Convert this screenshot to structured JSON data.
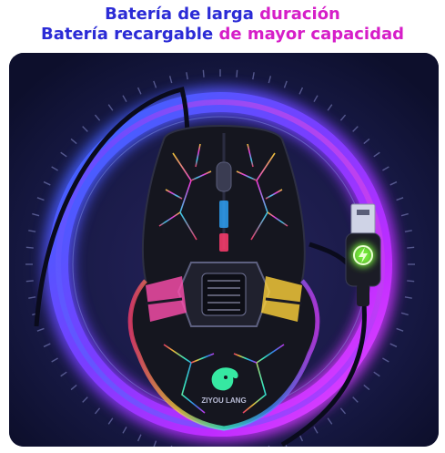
{
  "headline": {
    "line1": {
      "part_a": "Batería de larga ",
      "part_b": "duración"
    },
    "line2": {
      "part_a": "Batería recargable ",
      "part_b": "de mayor capacidad"
    }
  },
  "product": {
    "brand_text": "ZIYOU LANG",
    "icons": [
      "lightning-charge-icon",
      "usb-connector-icon",
      "dragon-logo-icon"
    ]
  },
  "colors": {
    "headline_blue": "#2b2bd6",
    "headline_magenta": "#d61ec8",
    "background": "#14163f",
    "ring_blue": "#3a6bff",
    "ring_purple": "#b02cff",
    "charge_green": "#7dff3a"
  }
}
